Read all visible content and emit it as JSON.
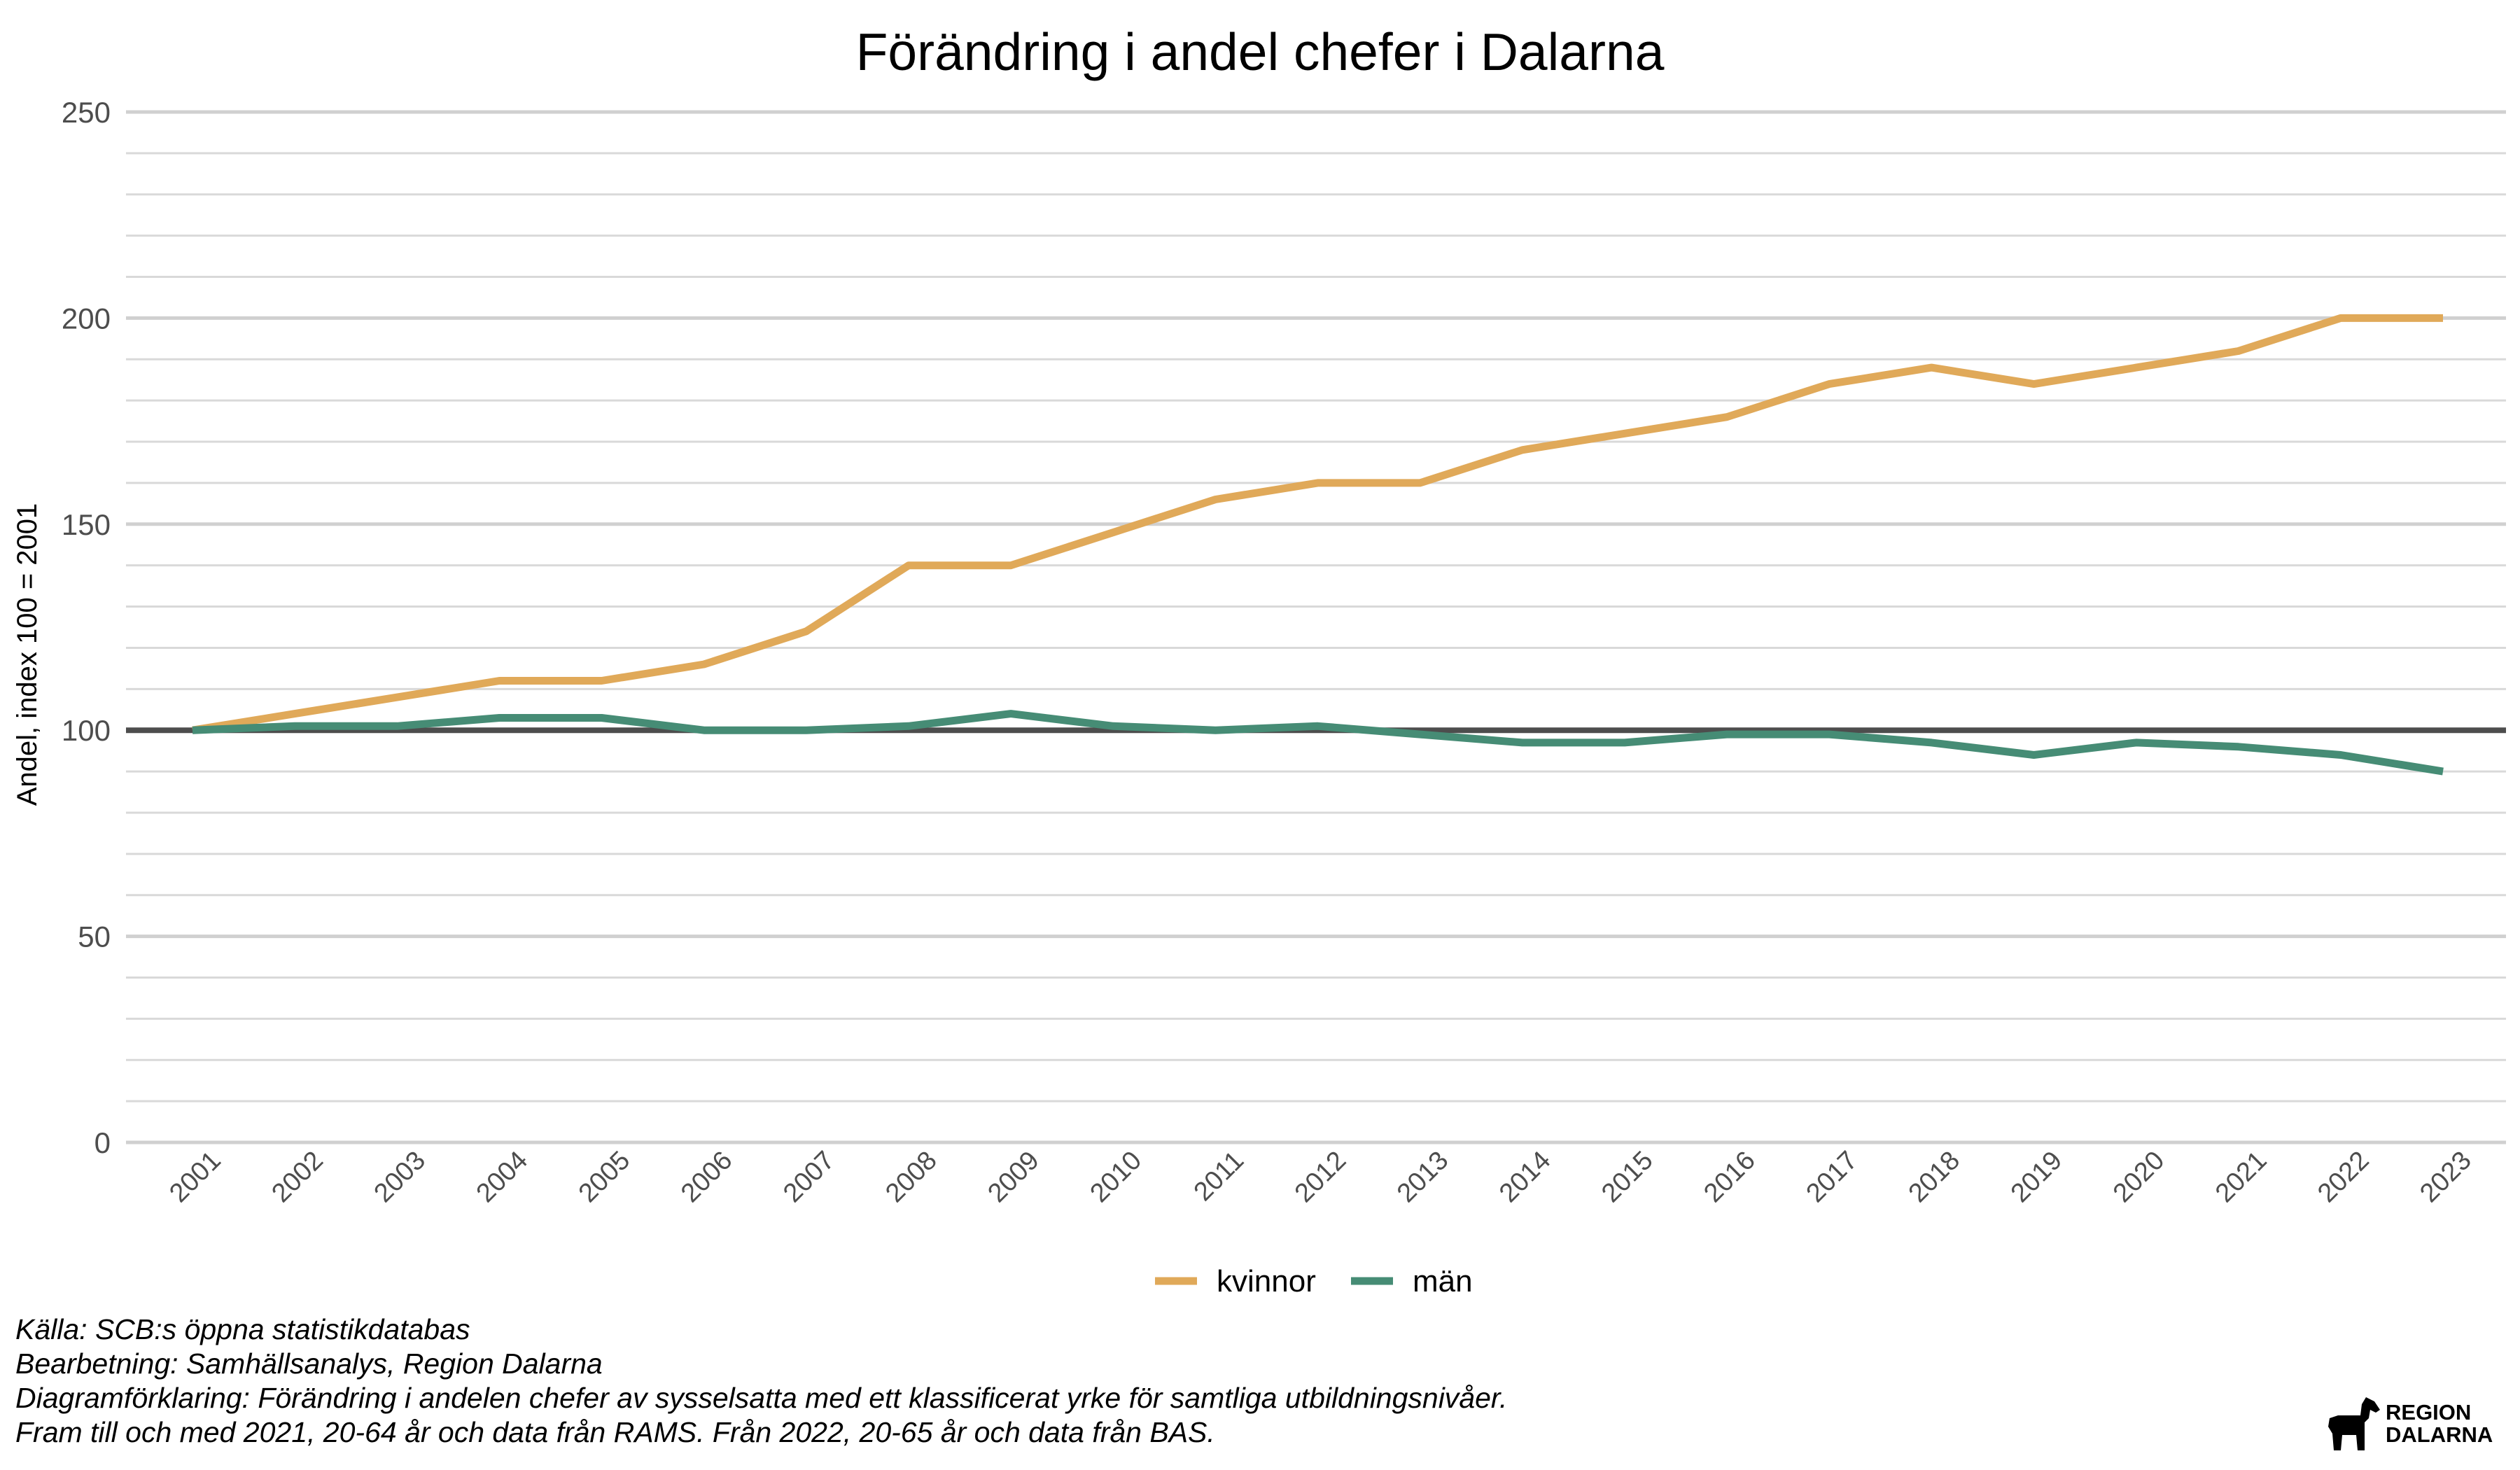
{
  "chart_data": {
    "type": "line",
    "title": "Förändring i andel chefer i Dalarna",
    "xlabel": "",
    "ylabel": "Andel, index 100 = 2001",
    "ylim": [
      0,
      250
    ],
    "yticks": [
      "0",
      "50",
      "100",
      "150",
      "200",
      "250"
    ],
    "grid": true,
    "reference_line": 100,
    "legend_position": "bottom",
    "categories": [
      "2001",
      "2002",
      "2003",
      "2004",
      "2005",
      "2006",
      "2007",
      "2008",
      "2009",
      "2010",
      "2011",
      "2012",
      "2013",
      "2014",
      "2015",
      "2016",
      "2017",
      "2018",
      "2019",
      "2020",
      "2021",
      "2022",
      "2023"
    ],
    "series": [
      {
        "name": "kvinnor",
        "color": "#E0A959",
        "values": [
          100,
          104,
          108,
          112,
          112,
          116,
          124,
          140,
          140,
          148,
          156,
          160,
          160,
          168,
          172,
          176,
          184,
          188,
          184,
          188,
          192,
          200,
          200
        ]
      },
      {
        "name": "män",
        "color": "#468C75",
        "values": [
          100,
          101,
          101,
          103,
          103,
          100,
          100,
          101,
          104,
          101,
          100,
          101,
          99,
          97,
          97,
          99,
          99,
          97,
          94,
          97,
          96,
          94,
          90
        ]
      }
    ]
  },
  "captions": {
    "source": "Källa: SCB:s öppna statistikdatabas",
    "processing": "Bearbetning: Samhällsanalys, Region Dalarna",
    "explanation": "Diagramförklaring: Förändring i andelen chefer av sysselsatta med ett klassificerat yrke för samtliga utbildningsnivåer.",
    "note": "Fram till och med 2021, 20-64 år och data från RAMS. Från 2022, 20-65 år och data från BAS."
  },
  "logo": {
    "line1": "REGION",
    "line2": "DALARNA",
    "icon": "dala-horse-icon"
  }
}
